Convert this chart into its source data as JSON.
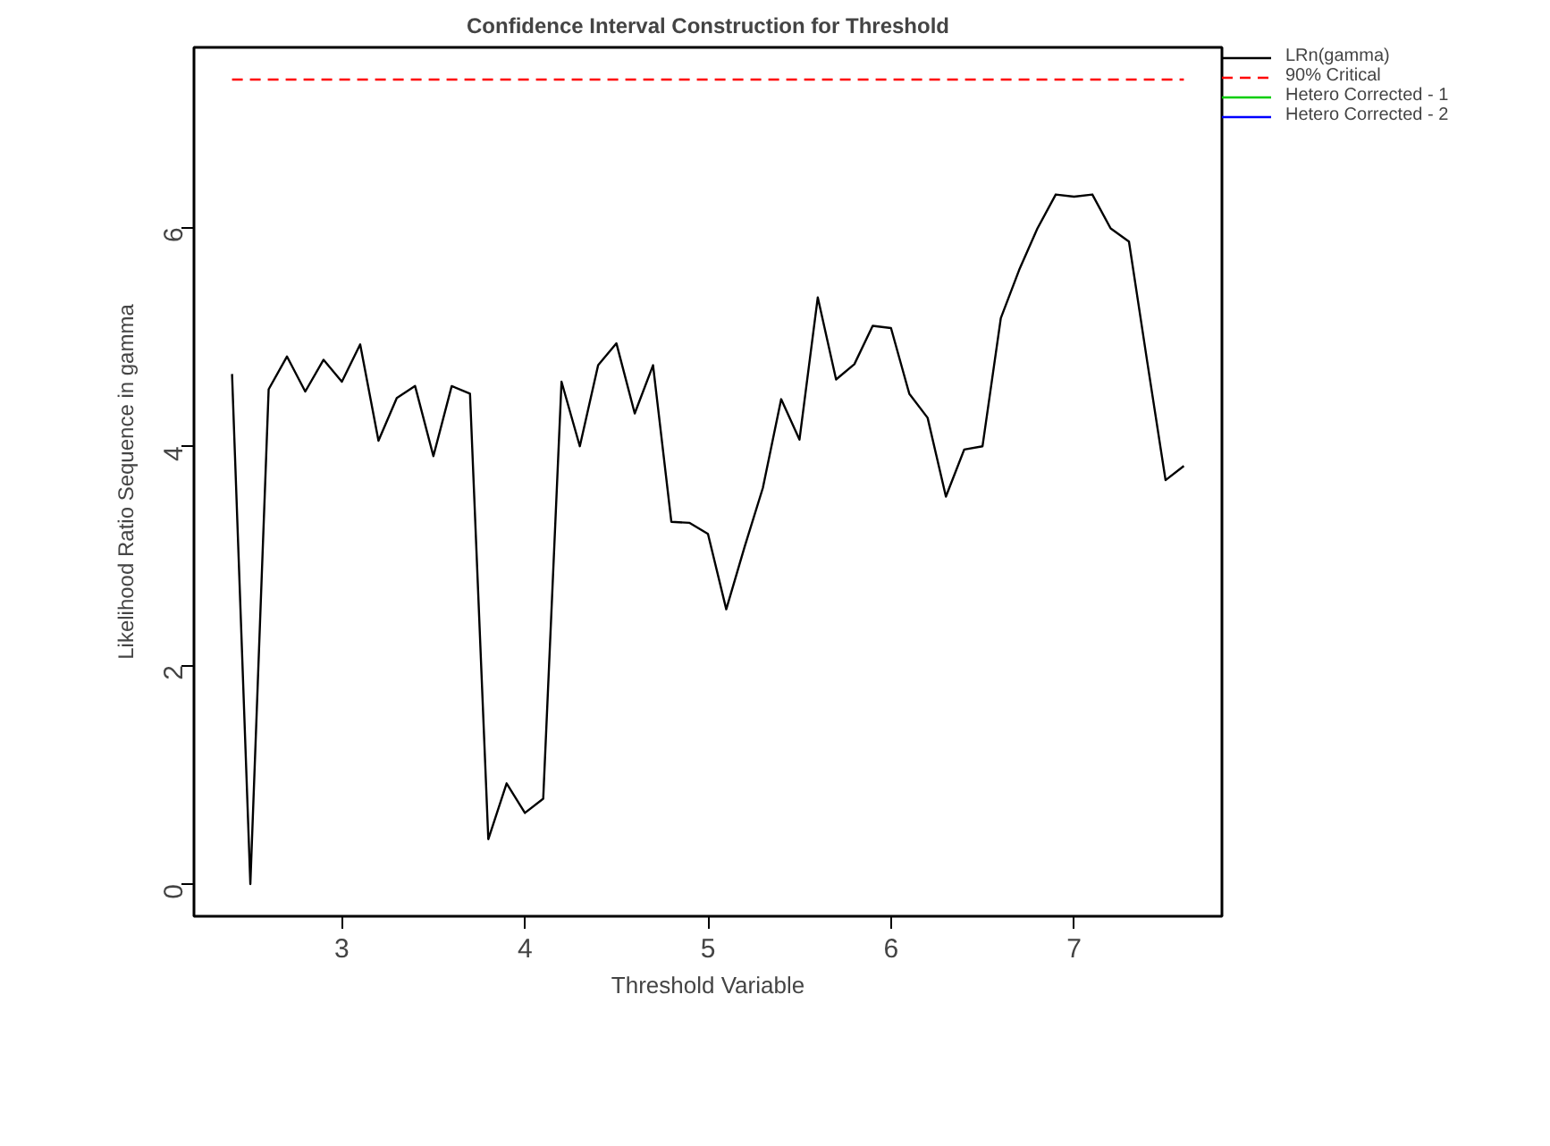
{
  "chart_data": {
    "type": "line",
    "title": "Confidence Interval Construction for Threshold",
    "xlabel": "Threshold Variable",
    "ylabel": "Likelihood Ratio Sequence in gamma",
    "x": [
      2.4,
      2.5,
      2.6,
      2.7,
      2.8,
      2.9,
      3.0,
      3.1,
      3.2,
      3.3,
      3.4,
      3.5,
      3.6,
      3.7,
      3.8,
      3.9,
      4.0,
      4.1,
      4.2,
      4.3,
      4.4,
      4.5,
      4.6,
      4.7,
      4.8,
      4.9,
      5.0,
      5.1,
      5.2,
      5.3,
      5.4,
      5.5,
      5.6,
      5.7,
      5.8,
      5.9,
      6.0,
      6.1,
      6.2,
      6.3,
      6.4,
      6.5,
      6.6,
      6.7,
      6.8,
      6.9,
      7.0,
      7.1,
      7.2,
      7.3,
      7.4,
      7.5,
      7.6
    ],
    "series": [
      {
        "name": "LRn(gamma)",
        "color": "#000000",
        "values": [
          4.66,
          0.0,
          4.52,
          4.82,
          4.5,
          4.79,
          4.59,
          4.93,
          4.05,
          4.44,
          4.55,
          3.91,
          4.55,
          4.48,
          0.41,
          0.92,
          0.65,
          0.78,
          4.59,
          4.0,
          4.74,
          4.94,
          4.3,
          4.74,
          3.31,
          3.3,
          3.2,
          2.51,
          3.08,
          3.62,
          4.43,
          4.06,
          5.36,
          4.61,
          4.75,
          5.1,
          5.08,
          4.48,
          4.26,
          3.54,
          3.97,
          4.0,
          5.17,
          5.61,
          5.99,
          6.3,
          6.28,
          6.3,
          5.99,
          5.87,
          4.77,
          3.69,
          3.82
        ]
      },
      {
        "name": "90% Critical",
        "color": "#ff0000",
        "line_style": "dashed",
        "x": [
          2.4,
          7.6
        ],
        "values": [
          7.35,
          7.35
        ]
      },
      {
        "name": "Hetero Corrected - 1",
        "color": "#00cd00",
        "values": [
          null,
          null,
          null,
          null,
          null,
          null,
          null,
          null,
          null,
          null,
          null,
          null,
          null,
          null,
          null,
          null,
          null,
          null,
          null,
          null,
          null,
          null,
          null,
          null,
          null,
          null,
          null,
          null,
          null,
          null,
          null,
          null,
          null,
          null,
          null,
          null,
          null,
          null,
          null,
          null,
          null,
          null,
          null,
          null,
          null,
          null,
          null,
          null,
          null,
          null,
          null,
          null,
          null
        ]
      },
      {
        "name": "Hetero Corrected - 2",
        "color": "#0000ff",
        "values": [
          null,
          null,
          null,
          null,
          null,
          null,
          null,
          null,
          null,
          null,
          null,
          null,
          null,
          null,
          null,
          null,
          null,
          null,
          null,
          null,
          null,
          null,
          null,
          null,
          null,
          null,
          null,
          null,
          null,
          null,
          null,
          null,
          null,
          null,
          null,
          null,
          null,
          null,
          null,
          null,
          null,
          null,
          null,
          null,
          null,
          null,
          null,
          null,
          null,
          null,
          null,
          null,
          null
        ]
      }
    ],
    "xlim": [
      2.192,
      7.808
    ],
    "ylim": [
      -0.294,
      7.644
    ],
    "xticks": [
      3,
      4,
      5,
      6,
      7
    ],
    "yticks": [
      0,
      2,
      4,
      6
    ],
    "grid": false,
    "legend": "top right",
    "line_style": "solid",
    "marker": "none"
  }
}
